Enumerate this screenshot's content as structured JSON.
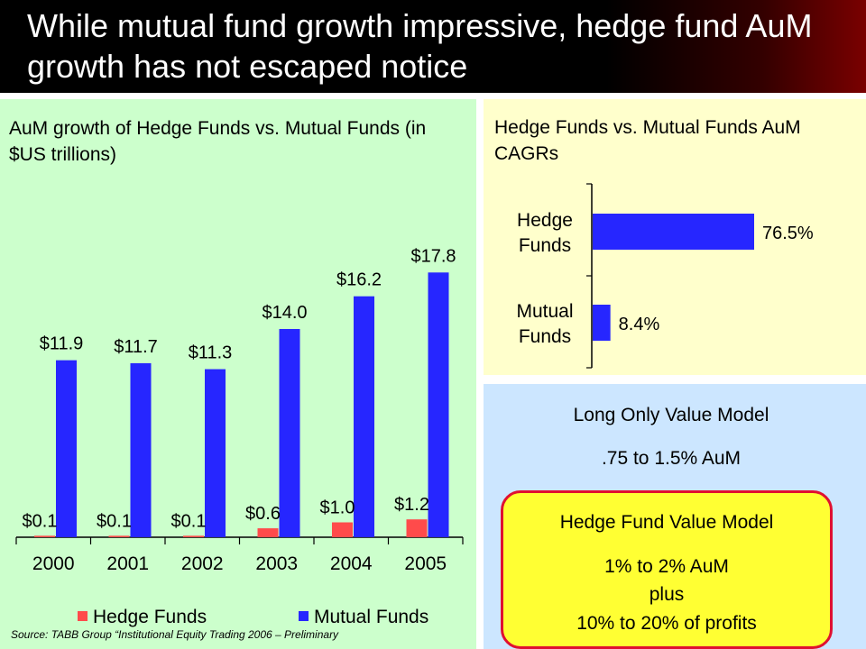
{
  "slide_title": "While mutual fund growth impressive, hedge fund AuM growth has not escaped notice",
  "colors": {
    "hedge": "#ff4b4b",
    "mutual": "#2626ff",
    "title_bg": "#000000"
  },
  "chart_data": [
    {
      "type": "bar",
      "title": "AuM growth of Hedge Funds vs. Mutual Funds (in $US trillions)",
      "categories": [
        "2000",
        "2001",
        "2002",
        "2003",
        "2004",
        "2005"
      ],
      "series": [
        {
          "name": "Hedge Funds",
          "values": [
            0.1,
            0.1,
            0.1,
            0.6,
            1.0,
            1.2
          ],
          "labels": [
            "$0.1",
            "$0.1",
            "$0.1",
            "$0.6",
            "$1.0",
            "$1.2"
          ]
        },
        {
          "name": "Mutual Funds",
          "values": [
            11.9,
            11.7,
            11.3,
            14.0,
            16.2,
            17.8
          ],
          "labels": [
            "$11.9",
            "$11.7",
            "$11.3",
            "$14.0",
            "$16.2",
            "$17.8"
          ]
        }
      ],
      "ylim": [
        0,
        18
      ],
      "legend": "bottom",
      "grid": false
    },
    {
      "type": "bar",
      "orientation": "horizontal",
      "title": "Hedge Funds vs. Mutual Funds AuM CAGRs",
      "categories": [
        [
          "Hedge",
          "Funds"
        ],
        [
          "Mutual",
          "Funds"
        ]
      ],
      "values": [
        76.5,
        8.4
      ],
      "labels": [
        "76.5%",
        "8.4%"
      ],
      "xlim": [
        0,
        100
      ]
    }
  ],
  "source": "Source: TABB Group “Institutional Equity Trading 2006 – Preliminary",
  "long_only": {
    "title": "Long Only Value Model",
    "fee": ".75 to 1.5% AuM"
  },
  "hedge_model": {
    "title": "Hedge Fund Value Model",
    "fee": "1% to 2% AuM",
    "plus": "plus",
    "profit": "10% to 20% of profits"
  }
}
